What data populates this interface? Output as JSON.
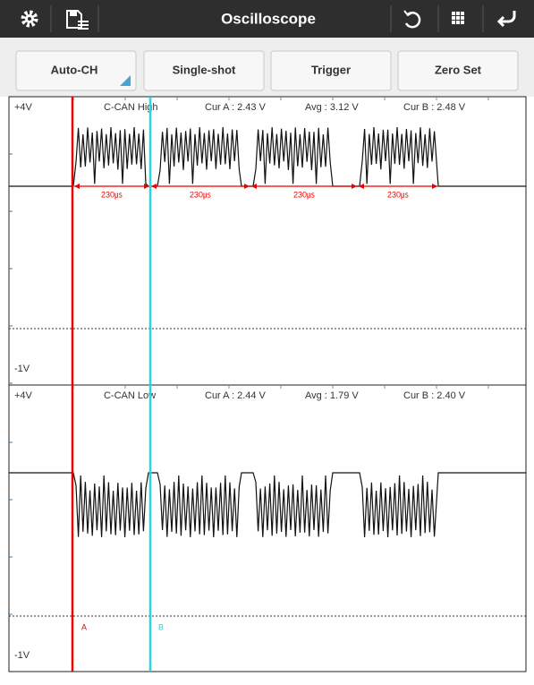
{
  "toolbar": {
    "title": "Oscilloscope"
  },
  "buttons": [
    "Auto-CH",
    "Single-shot",
    "Trigger",
    "Zero Set"
  ],
  "panels": [
    {
      "top_label": "+4V",
      "channel": "C-CAN High",
      "cur_a": "Cur A : 2.43 V",
      "avg": "Avg : 3.12 V",
      "cur_b": "Cur B : 2.48 V",
      "bottom_label": "-1V",
      "intervals": [
        "230㎲",
        "230㎲",
        "230㎲",
        "230㎲"
      ]
    },
    {
      "top_label": "+4V",
      "channel": "C-CAN Low",
      "cur_a": "Cur A : 2.44 V",
      "avg": "Avg : 1.79 V",
      "cur_b": "Cur B : 2.40 V",
      "bottom_label": "-1V"
    }
  ],
  "cursors": {
    "a": "A",
    "b": "B"
  }
}
